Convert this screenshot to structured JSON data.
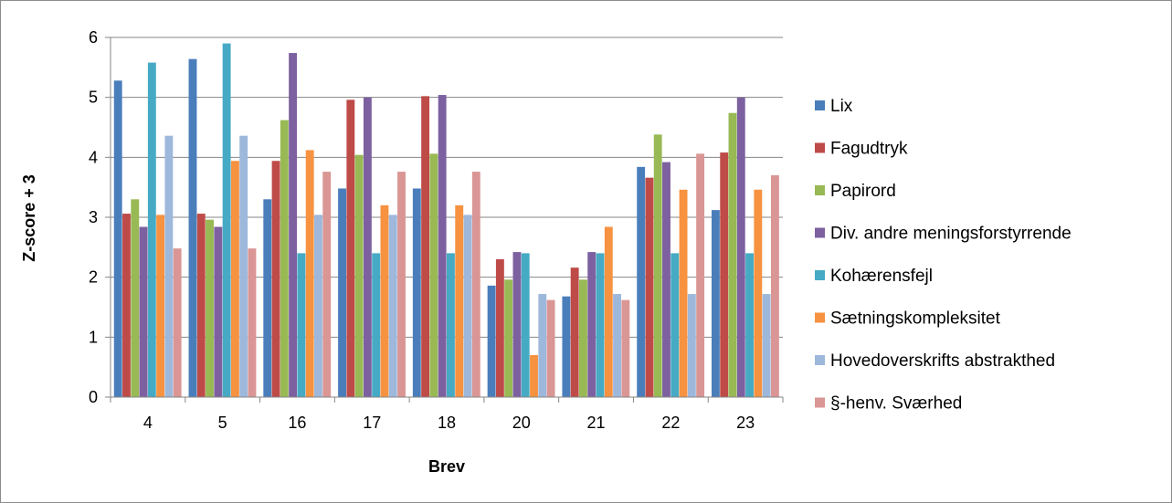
{
  "chart_data": {
    "type": "bar",
    "xlabel": "Brev",
    "ylabel": "Z-score + 3",
    "ylim": [
      0,
      6
    ],
    "yticks": [
      0,
      1,
      2,
      3,
      4,
      5,
      6
    ],
    "grid": "horizontal",
    "legend_position": "right",
    "categories": [
      "4",
      "5",
      "16",
      "17",
      "18",
      "20",
      "21",
      "22",
      "23"
    ],
    "series": [
      {
        "name": "Lix",
        "color": "#4a7ebb",
        "values": [
          5.28,
          5.64,
          3.3,
          3.48,
          3.48,
          1.86,
          1.68,
          3.84,
          3.12
        ]
      },
      {
        "name": "Fagudtryk",
        "color": "#be4b48",
        "values": [
          3.06,
          3.06,
          3.94,
          4.96,
          5.02,
          2.3,
          2.16,
          3.66,
          4.08
        ]
      },
      {
        "name": "Papirord",
        "color": "#98b954",
        "values": [
          3.3,
          2.96,
          4.62,
          4.04,
          4.06,
          1.96,
          1.96,
          4.38,
          4.74
        ]
      },
      {
        "name": "Div. andre meningsforstyrrende",
        "color": "#7d60a0",
        "values": [
          2.84,
          2.84,
          5.74,
          5.0,
          5.04,
          2.42,
          2.42,
          3.92,
          5.0
        ]
      },
      {
        "name": "Kohærensfejl",
        "color": "#46aac5",
        "values": [
          5.58,
          5.9,
          2.4,
          2.4,
          2.4,
          2.4,
          2.4,
          2.4,
          2.4
        ]
      },
      {
        "name": "Sætningskompleksitet",
        "color": "#f69240",
        "values": [
          3.04,
          3.94,
          4.12,
          3.2,
          3.2,
          0.7,
          2.84,
          3.46,
          3.46
        ]
      },
      {
        "name": "Hovedoverskrifts abstrakthed",
        "color": "#9eb8dc",
        "values": [
          4.36,
          4.36,
          3.04,
          3.04,
          3.04,
          1.72,
          1.72,
          1.72,
          1.72
        ]
      },
      {
        "name": "§-henv. Sværhed",
        "color": "#d99694",
        "values": [
          2.48,
          2.48,
          3.76,
          3.76,
          3.76,
          1.62,
          1.62,
          4.06,
          3.7
        ]
      }
    ]
  }
}
